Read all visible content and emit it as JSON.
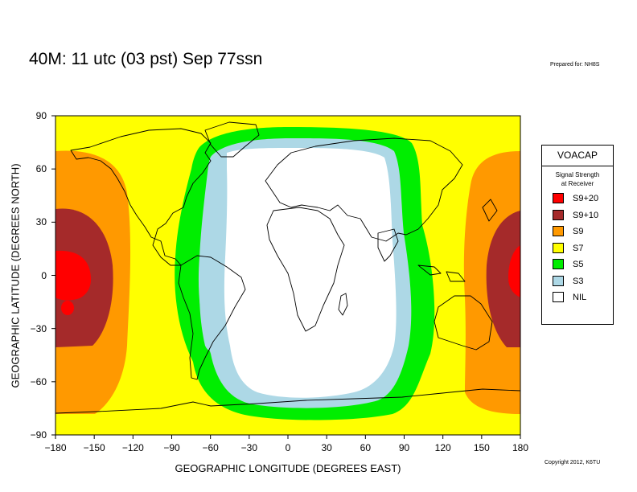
{
  "header": {
    "title": "40M:  11 utc (03 pst) Sep 77ssn",
    "prepared": "Prepared for: NH8S",
    "copyright": "Copyright 2012, K6TU"
  },
  "axes": {
    "xlabel": "GEOGRAPHIC LONGITUDE (DEGREES EAST)",
    "ylabel": "GEOGRAPHIC LATITUDE (DEGREES NORTH)",
    "xticks": [
      "−180",
      "−150",
      "−120",
      "−90",
      "−60",
      "−30",
      "0",
      "30",
      "60",
      "90",
      "120",
      "150",
      "180"
    ],
    "yticks": [
      "90",
      "60",
      "30",
      "0",
      "−30",
      "−60",
      "−90"
    ],
    "xlim": [
      -180,
      180
    ],
    "ylim": [
      -90,
      90
    ]
  },
  "legend": {
    "title": "VOACAP",
    "subtitle_line1": "Signal Strength",
    "subtitle_line2": "at Receiver",
    "items": [
      {
        "label": "S9+20",
        "color": "#ff0000"
      },
      {
        "label": "S9+10",
        "color": "#a52a2a"
      },
      {
        "label": "S9",
        "color": "#ff9900"
      },
      {
        "label": "S7",
        "color": "#ffff00"
      },
      {
        "label": "S5",
        "color": "#00ee00"
      },
      {
        "label": "S3",
        "color": "#add8e6"
      },
      {
        "label": "NIL",
        "color": "#ffffff"
      }
    ]
  },
  "colors": {
    "s920": "#ff0000",
    "s910": "#a52a2a",
    "s9": "#ff9900",
    "s7": "#ffff00",
    "s5": "#00ee00",
    "s3": "#add8e6",
    "nil": "#ffffff",
    "coast": "#000000"
  }
}
